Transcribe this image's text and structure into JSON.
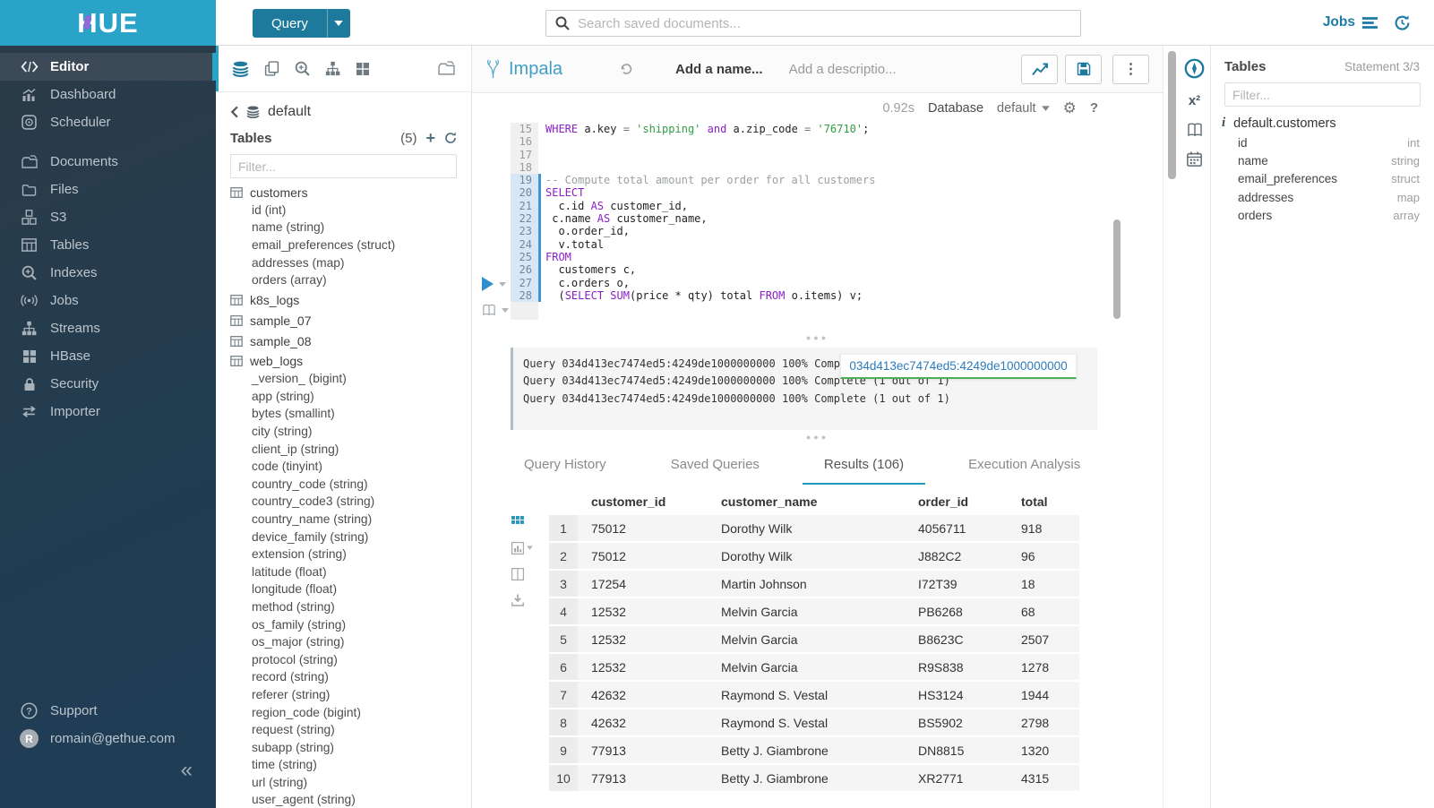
{
  "colors": {
    "primary": "#2aa3c9",
    "button": "#1d7a9d",
    "link": "#1d7ba5",
    "keyword": "#8a1fc9",
    "string": "#2f9e44",
    "tab_underline": "#2596be",
    "badge_green": "#4caf50"
  },
  "topbar": {
    "query_button": "Query",
    "search_placeholder": "Search saved documents...",
    "jobs_label": "Jobs"
  },
  "sidebar": {
    "logo": "HUE",
    "items": [
      {
        "label": "Editor",
        "icon": "code",
        "active": true,
        "gap_before": false
      },
      {
        "label": "Dashboard",
        "icon": "dashboard",
        "active": false,
        "gap_before": false
      },
      {
        "label": "Scheduler",
        "icon": "scheduler",
        "active": false,
        "gap_before": false
      },
      {
        "label": "Documents",
        "icon": "documents",
        "active": false,
        "gap_before": true
      },
      {
        "label": "Files",
        "icon": "files",
        "active": false,
        "gap_before": false
      },
      {
        "label": "S3",
        "icon": "s3",
        "active": false,
        "gap_before": false
      },
      {
        "label": "Tables",
        "icon": "tables",
        "active": false,
        "gap_before": false
      },
      {
        "label": "Indexes",
        "icon": "indexes",
        "active": false,
        "gap_before": false
      },
      {
        "label": "Jobs",
        "icon": "jobs",
        "active": false,
        "gap_before": false
      },
      {
        "label": "Streams",
        "icon": "streams",
        "active": false,
        "gap_before": false
      },
      {
        "label": "HBase",
        "icon": "hbase",
        "active": false,
        "gap_before": false
      },
      {
        "label": "Security",
        "icon": "security",
        "active": false,
        "gap_before": false
      },
      {
        "label": "Importer",
        "icon": "importer",
        "active": false,
        "gap_before": false
      }
    ],
    "support_label": "Support",
    "user_email": "romain@gethue.com",
    "avatar_letter": "R",
    "collapse_glyph": "«"
  },
  "assist": {
    "database": "default",
    "section_title": "Tables",
    "count": "(5)",
    "filter_placeholder": "Filter...",
    "entries": [
      {
        "label": "customers",
        "kind": "table"
      },
      {
        "label": "id (int)",
        "kind": "column"
      },
      {
        "label": "name (string)",
        "kind": "column"
      },
      {
        "label": "email_preferences (struct)",
        "kind": "column"
      },
      {
        "label": "addresses (map)",
        "kind": "column"
      },
      {
        "label": "orders (array)",
        "kind": "column"
      },
      {
        "label": "k8s_logs",
        "kind": "table"
      },
      {
        "label": "sample_07",
        "kind": "table"
      },
      {
        "label": "sample_08",
        "kind": "table"
      },
      {
        "label": "web_logs",
        "kind": "table"
      },
      {
        "label": "_version_ (bigint)",
        "kind": "column"
      },
      {
        "label": "app (string)",
        "kind": "column"
      },
      {
        "label": "bytes (smallint)",
        "kind": "column"
      },
      {
        "label": "city (string)",
        "kind": "column"
      },
      {
        "label": "client_ip (string)",
        "kind": "column"
      },
      {
        "label": "code (tinyint)",
        "kind": "column"
      },
      {
        "label": "country_code (string)",
        "kind": "column"
      },
      {
        "label": "country_code3 (string)",
        "kind": "column"
      },
      {
        "label": "country_name (string)",
        "kind": "column"
      },
      {
        "label": "device_family (string)",
        "kind": "column"
      },
      {
        "label": "extension (string)",
        "kind": "column"
      },
      {
        "label": "latitude (float)",
        "kind": "column"
      },
      {
        "label": "longitude (float)",
        "kind": "column"
      },
      {
        "label": "method (string)",
        "kind": "column"
      },
      {
        "label": "os_family (string)",
        "kind": "column"
      },
      {
        "label": "os_major (string)",
        "kind": "column"
      },
      {
        "label": "protocol (string)",
        "kind": "column"
      },
      {
        "label": "record (string)",
        "kind": "column"
      },
      {
        "label": "referer (string)",
        "kind": "column"
      },
      {
        "label": "region_code (bigint)",
        "kind": "column"
      },
      {
        "label": "request (string)",
        "kind": "column"
      },
      {
        "label": "subapp (string)",
        "kind": "column"
      },
      {
        "label": "time (string)",
        "kind": "column"
      },
      {
        "label": "url (string)",
        "kind": "column"
      },
      {
        "label": "user_agent (string)",
        "kind": "column"
      }
    ]
  },
  "editor": {
    "engine": "Impala",
    "name_placeholder": "Add a name...",
    "description_placeholder": "Add a descriptio...",
    "duration": "0.92s",
    "database_label": "Database",
    "database_value": "default",
    "lines": [
      {
        "n": "15",
        "hl": false,
        "segs": [
          [
            "WHERE",
            "k"
          ],
          [
            " a.key ",
            "t"
          ],
          [
            "= ",
            "o"
          ],
          [
            "'shipping'",
            "s"
          ],
          [
            " ",
            "t"
          ],
          [
            "and",
            "k"
          ],
          [
            " a.zip_code ",
            "t"
          ],
          [
            "= ",
            "o"
          ],
          [
            "'76710'",
            "s"
          ],
          [
            ";",
            "t"
          ]
        ]
      },
      {
        "n": "16",
        "hl": false,
        "segs": []
      },
      {
        "n": "17",
        "hl": false,
        "segs": []
      },
      {
        "n": "18",
        "hl": false,
        "segs": []
      },
      {
        "n": "19",
        "hl": true,
        "segs": [
          [
            "-- Compute total amount per order for all customers",
            "c"
          ]
        ]
      },
      {
        "n": "20",
        "hl": true,
        "segs": [
          [
            "SELECT",
            "k"
          ]
        ]
      },
      {
        "n": "21",
        "hl": true,
        "segs": [
          [
            "  c.id ",
            "t"
          ],
          [
            "AS",
            "k"
          ],
          [
            " customer_id,",
            "t"
          ]
        ]
      },
      {
        "n": "22",
        "hl": true,
        "segs": [
          [
            " c.name ",
            "t"
          ],
          [
            "AS",
            "k"
          ],
          [
            " customer_name,",
            "t"
          ]
        ]
      },
      {
        "n": "23",
        "hl": true,
        "segs": [
          [
            "  o.order_id,",
            "t"
          ]
        ]
      },
      {
        "n": "24",
        "hl": true,
        "segs": [
          [
            "  v.total",
            "t"
          ]
        ]
      },
      {
        "n": "25",
        "hl": true,
        "segs": [
          [
            "FROM",
            "k"
          ]
        ]
      },
      {
        "n": "26",
        "hl": true,
        "segs": [
          [
            "  customers c,",
            "t"
          ]
        ]
      },
      {
        "n": "27",
        "hl": true,
        "segs": [
          [
            "  c.orders o,",
            "t"
          ]
        ]
      },
      {
        "n": "28",
        "hl": true,
        "segs": [
          [
            "  (",
            "t"
          ],
          [
            "SELECT",
            "k"
          ],
          [
            " ",
            "t"
          ],
          [
            "SUM",
            "k"
          ],
          [
            "(price * qty) total ",
            "t"
          ],
          [
            "FROM",
            "k"
          ],
          [
            " o.items) v;",
            "t"
          ]
        ]
      }
    ]
  },
  "log": {
    "lines": [
      "Query 034d413ec7474ed5:4249de1000000000 100% Complete (1 out of 1)",
      "Query 034d413ec7474ed5:4249de1000000000 100% Complete (1 out of 1)",
      "Query 034d413ec7474ed5:4249de1000000000 100% Complete (1 out of 1)"
    ],
    "job_badge": "034d413ec7474ed5:4249de1000000000"
  },
  "tabs": {
    "items": [
      "Query History",
      "Saved Queries",
      "Results (106)",
      "Execution Analysis"
    ],
    "active_index": 2
  },
  "results": {
    "columns": [
      "customer_id",
      "customer_name",
      "order_id",
      "total"
    ],
    "rows": [
      {
        "idx": "1",
        "cells": [
          "75012",
          "Dorothy Wilk",
          "4056711",
          "918"
        ]
      },
      {
        "idx": "2",
        "cells": [
          "75012",
          "Dorothy Wilk",
          "J882C2",
          "96"
        ]
      },
      {
        "idx": "3",
        "cells": [
          "17254",
          "Martin Johnson",
          "I72T39",
          "18"
        ]
      },
      {
        "idx": "4",
        "cells": [
          "12532",
          "Melvin Garcia",
          "PB6268",
          "68"
        ]
      },
      {
        "idx": "5",
        "cells": [
          "12532",
          "Melvin Garcia",
          "B8623C",
          "2507"
        ]
      },
      {
        "idx": "6",
        "cells": [
          "12532",
          "Melvin Garcia",
          "R9S838",
          "1278"
        ]
      },
      {
        "idx": "7",
        "cells": [
          "42632",
          "Raymond S. Vestal",
          "HS3124",
          "1944"
        ]
      },
      {
        "idx": "8",
        "cells": [
          "42632",
          "Raymond S. Vestal",
          "BS5902",
          "2798"
        ]
      },
      {
        "idx": "9",
        "cells": [
          "77913",
          "Betty J. Giambrone",
          "DN8815",
          "1320"
        ]
      },
      {
        "idx": "10",
        "cells": [
          "77913",
          "Betty J. Giambrone",
          "XR2771",
          "4315"
        ]
      }
    ]
  },
  "right_panel": {
    "title": "Tables",
    "statement": "Statement 3/3",
    "filter_placeholder": "Filter...",
    "table_name": "default.customers",
    "columns": [
      {
        "name": "id",
        "type": "int"
      },
      {
        "name": "name",
        "type": "string"
      },
      {
        "name": "email_preferences",
        "type": "struct"
      },
      {
        "name": "addresses",
        "type": "map"
      },
      {
        "name": "orders",
        "type": "array"
      }
    ]
  }
}
